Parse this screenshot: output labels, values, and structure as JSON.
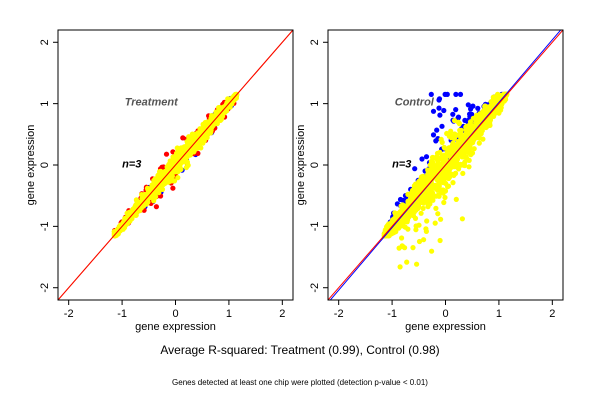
{
  "figure": {
    "caption": "Average R-squared: Treatment (0.99), Control (0.98)",
    "footnote": "Genes detected at least one chip were plotted (detection p-value < 0.01)"
  },
  "colors": {
    "background": "#ffffff",
    "points_primary": "#ffff00",
    "points_red": "#ff0000",
    "points_blue": "#0000ff",
    "line_orange": "#e07800",
    "line_red": "#ff0000",
    "line_blue": "#0000ff",
    "axis": "#000000",
    "panel_label": "#555555"
  },
  "chart_data": [
    {
      "type": "scatter",
      "panel_label": "Treatment",
      "n_label": "n=3",
      "xlabel": "gene expression",
      "ylabel": "gene expression",
      "xlim": [
        -2.2,
        2.2
      ],
      "ylim": [
        -2.2,
        2.2
      ],
      "xticks": [
        -2,
        -1,
        0,
        1,
        2
      ],
      "yticks": [
        -2,
        -1,
        0,
        1,
        2
      ],
      "point_range": [
        -1.15,
        1.15
      ],
      "cloud_width": 0.1,
      "outlier_spread": 0.18,
      "reference_lines": [
        {
          "color": "line_orange",
          "slope": 1,
          "intercept": 0
        },
        {
          "color": "line_red",
          "slope": 1,
          "intercept": 0
        }
      ],
      "series": [
        {
          "color": "points_blue",
          "outliers": 40
        },
        {
          "color": "points_red",
          "outliers": 120
        },
        {
          "color": "points_primary",
          "points": 900
        }
      ]
    },
    {
      "type": "scatter",
      "panel_label": "Control",
      "n_label": "n=3",
      "xlabel": "gene expression",
      "ylabel": "gene expression",
      "xlim": [
        -2.2,
        2.2
      ],
      "ylim": [
        -2.2,
        2.2
      ],
      "xticks": [
        -2,
        -1,
        0,
        1,
        2
      ],
      "yticks": [
        -2,
        -1,
        0,
        1,
        2
      ],
      "point_range": [
        -1.15,
        1.15
      ],
      "cloud_width": 0.2,
      "outlier_spread": 0.5,
      "reference_lines": [
        {
          "color": "line_blue",
          "slope": 1.02,
          "intercept": 0.0
        },
        {
          "color": "line_red",
          "slope": 1,
          "intercept": 0
        }
      ],
      "series": [
        {
          "color": "points_blue",
          "outliers": 160,
          "bias": "up"
        },
        {
          "color": "points_primary",
          "points": 1100,
          "outliers_down": 60
        }
      ]
    }
  ]
}
